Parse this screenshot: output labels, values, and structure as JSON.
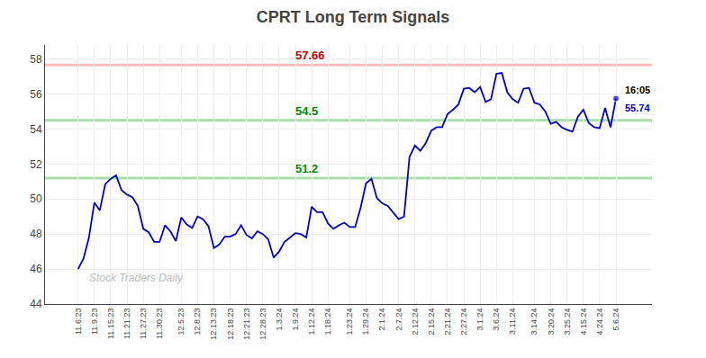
{
  "chart_data": {
    "type": "line",
    "title": "CPRT Long Term Signals",
    "categories": [
      "11.6.23",
      null,
      null,
      "11.9.23",
      null,
      null,
      "11.15.23",
      null,
      null,
      "11.21.23",
      null,
      null,
      "11.27.23",
      null,
      null,
      "11.30.23",
      null,
      null,
      null,
      "12.5.23",
      null,
      null,
      "12.8.23",
      null,
      null,
      "12.13.23",
      null,
      null,
      "12.18.23",
      null,
      null,
      "12.21.23",
      null,
      null,
      "12.28.23",
      null,
      null,
      "1.3.24",
      null,
      null,
      "1.9.24",
      null,
      null,
      "1.12.24",
      null,
      null,
      "1.18.24",
      null,
      null,
      null,
      "1.23.24",
      null,
      null,
      "1.29.24",
      null,
      null,
      "2.1.24",
      null,
      null,
      "2.7.24",
      null,
      null,
      "2.12.24",
      null,
      null,
      "2.15.24",
      null,
      null,
      "2.21.24",
      null,
      null,
      "2.27.24",
      null,
      null,
      "3.1.24",
      null,
      null,
      "3.6.24",
      null,
      null,
      "3.11.24",
      null,
      null,
      null,
      "3.14.24",
      null,
      null,
      "3.20.24",
      null,
      null,
      "3.25.24",
      null,
      null,
      "4.15.24",
      null,
      null,
      "4.24.24",
      null,
      null,
      "5.6.24"
    ],
    "series": [
      {
        "color": "#0000cc",
        "values": [
          46.0,
          46.6,
          47.8,
          49.8,
          49.35,
          50.85,
          51.15,
          51.35,
          50.5,
          50.25,
          50.1,
          49.6,
          48.3,
          48.1,
          47.55,
          47.55,
          48.5,
          48.15,
          47.6,
          48.95,
          48.55,
          48.35,
          49.0,
          48.85,
          48.45,
          47.2,
          47.4,
          47.85,
          47.85,
          48.0,
          48.5,
          47.95,
          47.75,
          48.15,
          48.0,
          47.7,
          46.65,
          47.0,
          47.55,
          47.8,
          48.05,
          48.0,
          47.8,
          49.55,
          49.25,
          49.25,
          48.6,
          48.3,
          48.5,
          48.65,
          48.4,
          48.4,
          49.5,
          50.9,
          51.15,
          50.05,
          49.75,
          49.6,
          49.25,
          48.85,
          49.0,
          52.4,
          53.05,
          52.75,
          53.2,
          53.9,
          54.1,
          54.1,
          54.85,
          55.1,
          55.4,
          56.3,
          56.35,
          56.1,
          56.4,
          55.55,
          55.7,
          57.15,
          57.2,
          56.1,
          55.7,
          55.5,
          56.3,
          56.35,
          55.5,
          55.4,
          55.0,
          54.3,
          54.4,
          54.1,
          53.95,
          53.85,
          54.7,
          55.1,
          54.35,
          54.1,
          54.05,
          55.2,
          54.1,
          55.74
        ]
      }
    ],
    "levels": [
      {
        "y": 57.66,
        "label": "57.66",
        "color": "#ffbbbb",
        "label_color": "#cc0000"
      },
      {
        "y": 54.5,
        "label": "54.5",
        "color": "#aaddaa",
        "label_color": "#008800"
      },
      {
        "y": 51.2,
        "label": "51.2",
        "color": "#aaddaa",
        "label_color": "#008800"
      }
    ],
    "watermark": "Stock Traders Daily",
    "annotations": [
      "16:05",
      "55.74"
    ],
    "ylim": [
      44,
      58.8
    ],
    "yticks": [
      44,
      46,
      48,
      50,
      52,
      54,
      56,
      58
    ],
    "grid": true
  }
}
